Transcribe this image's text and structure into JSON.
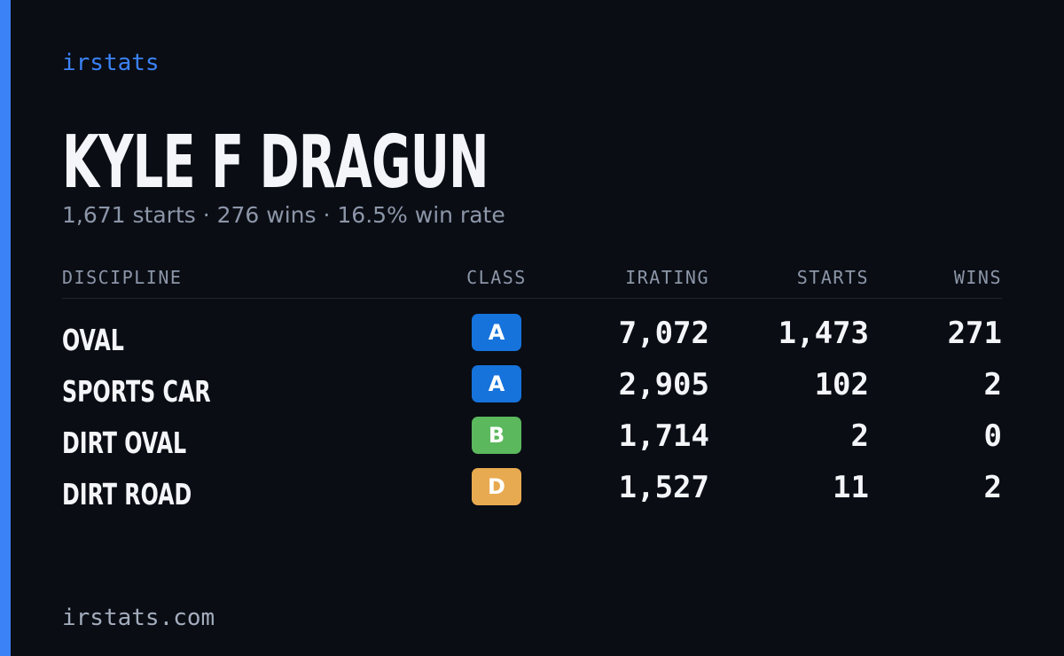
{
  "brand": "irstats",
  "driver": {
    "name": "KYLE F DRAGUN",
    "summary": "1,671 starts · 276 wins · 16.5% win rate"
  },
  "table": {
    "headers": [
      "DISCIPLINE",
      "CLASS",
      "IRATING",
      "STARTS",
      "WINS"
    ],
    "rows": [
      {
        "discipline": "OVAL",
        "class": "A",
        "class_color": "#1673dc",
        "irating": "7,072",
        "starts": "1,473",
        "wins": "271"
      },
      {
        "discipline": "SPORTS CAR",
        "class": "A",
        "class_color": "#1673dc",
        "irating": "2,905",
        "starts": "102",
        "wins": "2"
      },
      {
        "discipline": "DIRT OVAL",
        "class": "B",
        "class_color": "#5bb85d",
        "irating": "1,714",
        "starts": "2",
        "wins": "0"
      },
      {
        "discipline": "DIRT ROAD",
        "class": "D",
        "class_color": "#e8aa50",
        "irating": "1,527",
        "starts": "11",
        "wins": "2"
      }
    ]
  },
  "footer": "irstats.com"
}
